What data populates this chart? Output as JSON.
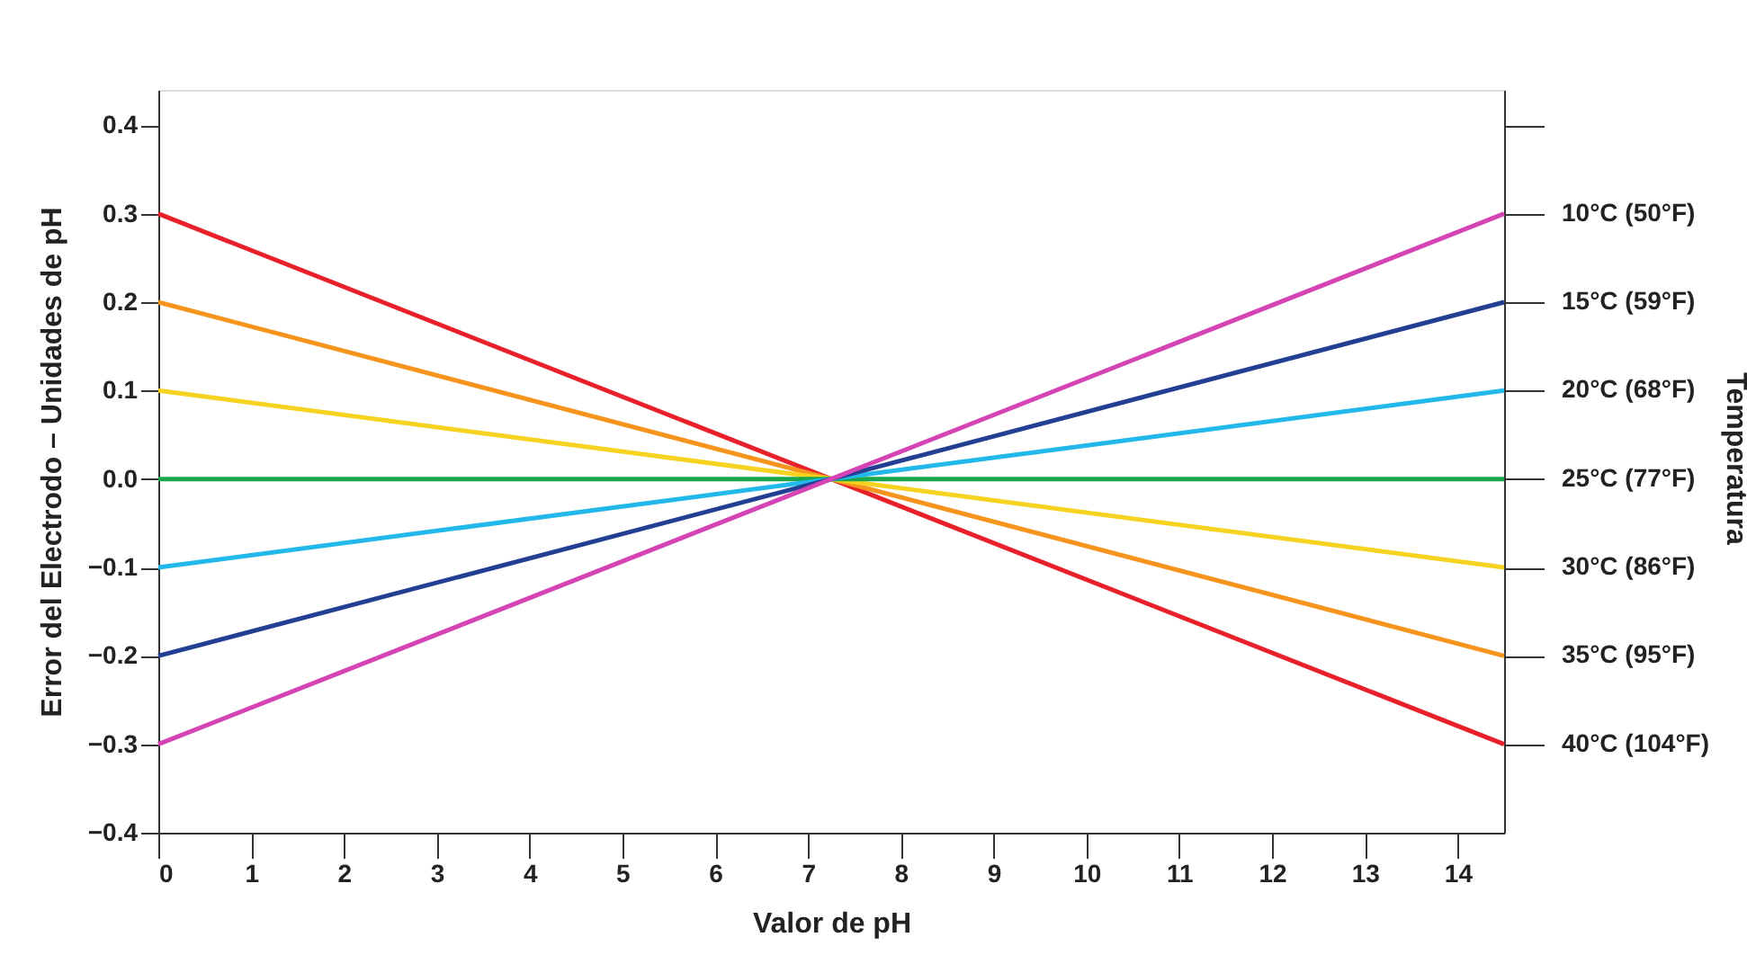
{
  "chart_data": {
    "type": "line",
    "xlabel": "Valor de pH",
    "ylabel": "Error del Electrodo – Unidades de pH",
    "annotations": [
      "Temperatura"
    ],
    "xlim": [
      0,
      14.5
    ],
    "xticks": [
      0,
      1,
      2,
      3,
      4,
      5,
      6,
      7,
      8,
      9,
      10,
      11,
      12,
      13,
      14
    ],
    "ylim": [
      -0.4,
      0.44
    ],
    "yticks": [
      -0.4,
      -0.3,
      -0.2,
      -0.1,
      {
        "value": 0,
        "label": "0.0"
      },
      0.1,
      0.2,
      0.3,
      0.4
    ],
    "x": [
      0,
      14.5
    ],
    "series": [
      {
        "name": "40°C (104°F)",
        "color": "#e8202a",
        "values": [
          0.3,
          -0.3
        ]
      },
      {
        "name": "35°C (95°F)",
        "color": "#f7941d",
        "values": [
          0.2,
          -0.2
        ]
      },
      {
        "name": "30°C (86°F)",
        "color": "#f5d320",
        "values": [
          0.1,
          -0.1
        ]
      },
      {
        "name": "25°C (77°F)",
        "color": "#1aa64a",
        "values": [
          0,
          0
        ]
      },
      {
        "name": "20°C (68°F)",
        "color": "#22b8ea",
        "values": [
          -0.1,
          0.1
        ]
      },
      {
        "name": "15°C (59°F)",
        "color": "#233f94",
        "values": [
          -0.2,
          0.2
        ]
      },
      {
        "name": "10°C (50°F)",
        "color": "#d444b4",
        "values": [
          -0.3,
          0.3
        ]
      }
    ],
    "grid": false,
    "legend": false,
    "marker": "none",
    "line_style": "solid"
  }
}
